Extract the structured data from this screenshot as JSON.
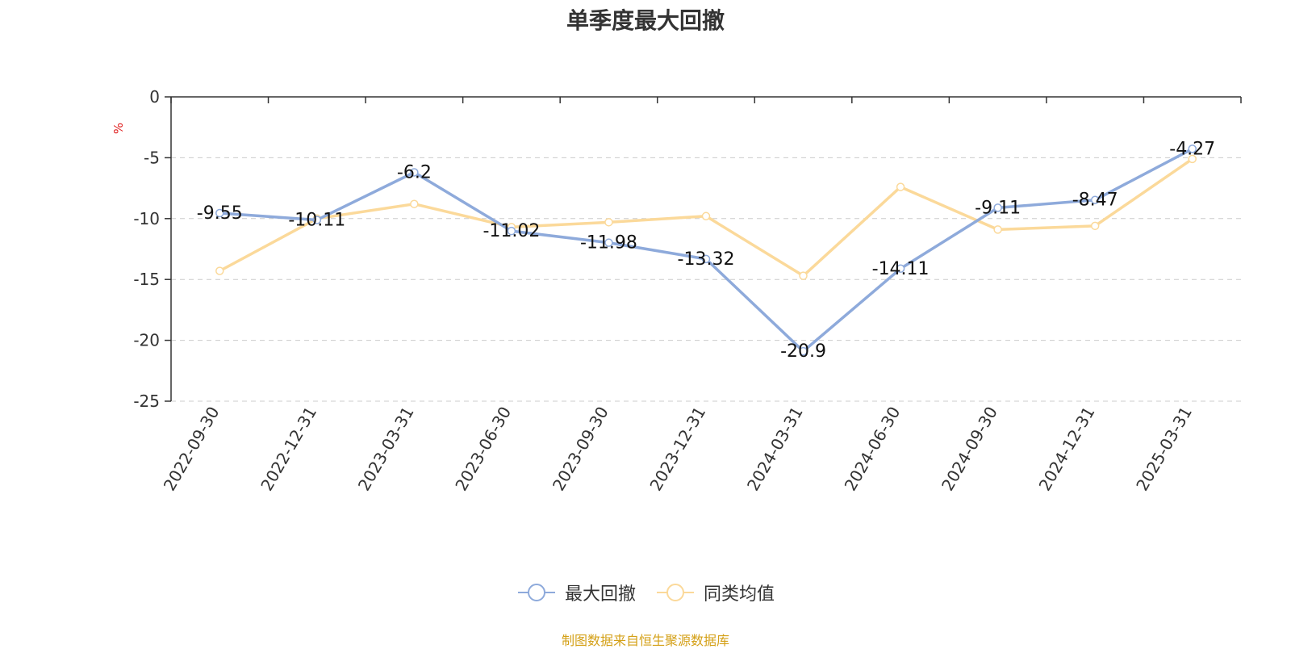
{
  "chart_data": {
    "type": "line",
    "title": "单季度最大回撤",
    "ylabel": "%",
    "categories": [
      "2022-09-30",
      "2022-12-31",
      "2023-03-31",
      "2023-06-30",
      "2023-09-30",
      "2023-12-31",
      "2024-03-31",
      "2024-06-30",
      "2024-09-30",
      "2024-12-31",
      "2025-03-31"
    ],
    "ylim": [
      -25,
      0
    ],
    "yticks": [
      0,
      -5,
      -10,
      -15,
      -20,
      -25
    ],
    "grid": true,
    "legend_position": "bottom",
    "series": [
      {
        "name": "最大回撤",
        "color": "#8eaadb",
        "show_labels": true,
        "values": [
          -9.55,
          -10.11,
          -6.2,
          -11.02,
          -11.98,
          -13.32,
          -20.9,
          -14.11,
          -9.11,
          -8.47,
          -4.27
        ]
      },
      {
        "name": "同类均值",
        "color": "#fbd99a",
        "show_labels": false,
        "values": [
          -14.3,
          -10.0,
          -8.8,
          -10.7,
          -10.3,
          -9.8,
          -14.7,
          -7.4,
          -10.9,
          -10.6,
          -5.1
        ]
      }
    ]
  },
  "source": "制图数据来自恒生聚源数据库"
}
